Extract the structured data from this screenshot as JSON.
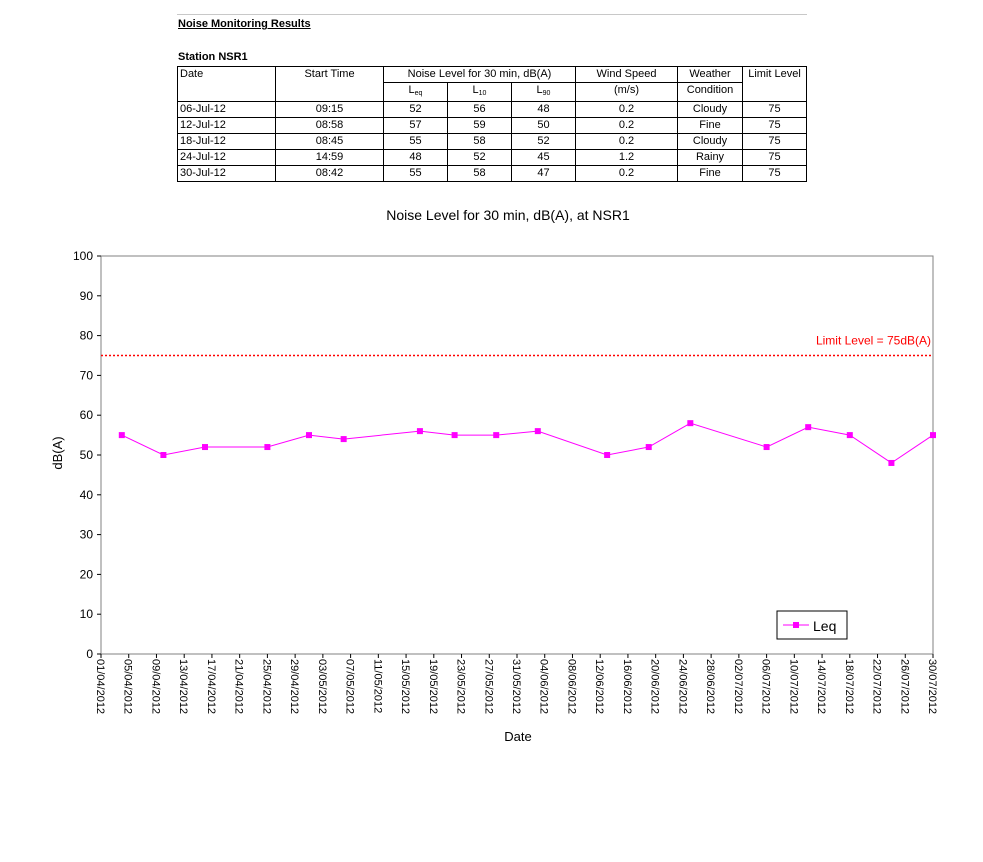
{
  "report": {
    "title": "Noise Monitoring Results",
    "station": "Station NSR1",
    "columns": {
      "date": "Date",
      "start_time": "Start Time",
      "noise_level": "Noise Level for 30 min, dB(A)",
      "leq": "L",
      "leq_sub": "eq",
      "l10": "L",
      "l10_sub": "10",
      "l90": "L",
      "l90_sub": "90",
      "wind_speed": "Wind Speed",
      "wind_unit": "(m/s)",
      "weather": "Weather",
      "weather2": "Condition",
      "limit": "Limit Level"
    },
    "rows": [
      {
        "date": "06-Jul-12",
        "start": "09:15",
        "leq": "52",
        "l10": "56",
        "l90": "48",
        "wind": "0.2",
        "weather": "Cloudy",
        "limit": "75"
      },
      {
        "date": "12-Jul-12",
        "start": "08:58",
        "leq": "57",
        "l10": "59",
        "l90": "50",
        "wind": "0.2",
        "weather": "Fine",
        "limit": "75"
      },
      {
        "date": "18-Jul-12",
        "start": "08:45",
        "leq": "55",
        "l10": "58",
        "l90": "52",
        "wind": "0.2",
        "weather": "Cloudy",
        "limit": "75"
      },
      {
        "date": "24-Jul-12",
        "start": "14:59",
        "leq": "48",
        "l10": "52",
        "l90": "45",
        "wind": "1.2",
        "weather": "Rainy",
        "limit": "75"
      },
      {
        "date": "30-Jul-12",
        "start": "08:42",
        "leq": "55",
        "l10": "58",
        "l90": "47",
        "wind": "0.2",
        "weather": "Fine",
        "limit": "75"
      }
    ]
  },
  "chart_data": {
    "type": "line",
    "title": "Noise Level for 30 min, dB(A), at NSR1",
    "xlabel": "Date",
    "ylabel": "dB(A)",
    "ylim": [
      0,
      100
    ],
    "yticks": [
      0,
      10,
      20,
      30,
      40,
      50,
      60,
      70,
      80,
      90,
      100
    ],
    "xlim": [
      "01/04/2012",
      "30/07/2012"
    ],
    "xticks": [
      "01/04/2012",
      "05/04/2012",
      "09/04/2012",
      "13/04/2012",
      "17/04/2012",
      "21/04/2012",
      "25/04/2012",
      "29/04/2012",
      "03/05/2012",
      "07/05/2012",
      "11/05/2012",
      "15/05/2012",
      "19/05/2012",
      "23/05/2012",
      "27/05/2012",
      "31/05/2012",
      "04/06/2012",
      "08/06/2012",
      "12/06/2012",
      "16/06/2012",
      "20/06/2012",
      "24/06/2012",
      "28/06/2012",
      "02/07/2012",
      "06/07/2012",
      "10/07/2012",
      "14/07/2012",
      "18/07/2012",
      "22/07/2012",
      "26/07/2012",
      "30/07/2012"
    ],
    "grid": false,
    "legend_position": "bottom-right",
    "series": [
      {
        "name": "Leq",
        "color": "#ff00ff",
        "x": [
          "04/04/2012",
          "10/04/2012",
          "16/04/2012",
          "25/04/2012",
          "01/05/2012",
          "06/05/2012",
          "17/05/2012",
          "22/05/2012",
          "28/05/2012",
          "03/06/2012",
          "13/06/2012",
          "19/06/2012",
          "25/06/2012",
          "06/07/2012",
          "12/07/2012",
          "18/07/2012",
          "24/07/2012",
          "30/07/2012"
        ],
        "values": [
          55,
          50,
          52,
          52,
          55,
          54,
          56,
          55,
          55,
          56,
          50,
          52,
          58,
          52,
          57,
          55,
          48,
          55
        ]
      }
    ],
    "reference_line": {
      "value": 75,
      "label": "Limit Level = 75dB(A)",
      "color": "#ff0000"
    }
  }
}
